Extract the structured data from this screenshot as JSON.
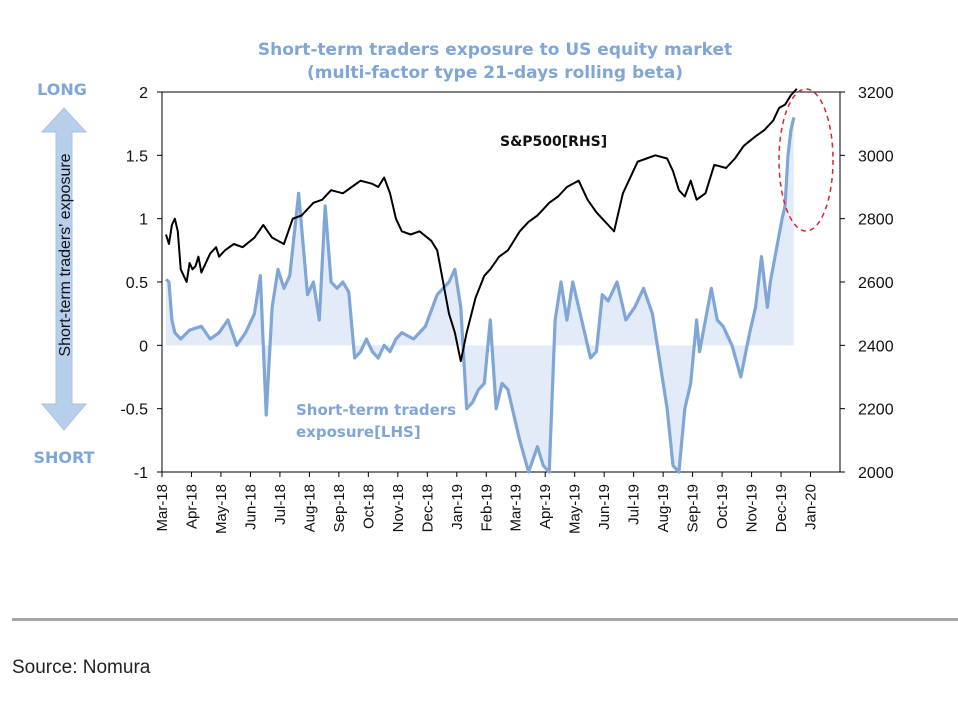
{
  "chart_data": {
    "type": "line",
    "title": "Short-term traders exposure to US equity market",
    "subtitle": "(multi-factor type 21-days rolling beta)",
    "ylabel": "Short-term traders' exposure",
    "direction_labels": {
      "top": "LONG",
      "bottom": "SHORT"
    },
    "x_ticks": [
      "Mar-18",
      "Apr-18",
      "May-18",
      "Jun-18",
      "Jul-18",
      "Aug-18",
      "Sep-18",
      "Oct-18",
      "Nov-18",
      "Dec-18",
      "Jan-19",
      "Feb-19",
      "Mar-19",
      "Apr-19",
      "May-19",
      "Jun-19",
      "Jul-19",
      "Aug-19",
      "Sep-19",
      "Oct-19",
      "Nov-19",
      "Dec-19",
      "Jan-20"
    ],
    "left_axis": {
      "ticks": [
        "2",
        "1.5",
        "1",
        "0.5",
        "0",
        "-0.5",
        "-1"
      ],
      "range": [
        -1,
        2
      ]
    },
    "right_axis": {
      "ticks": [
        "3200",
        "3000",
        "2800",
        "2600",
        "2400",
        "2200",
        "2000"
      ],
      "range": [
        2000,
        3200
      ]
    },
    "series": [
      {
        "name": "S&P500[RHS]",
        "axis": "right",
        "color": "#000000",
        "x": [
          0,
          0.1,
          0.2,
          0.3,
          0.4,
          0.5,
          0.6,
          0.7,
          0.8,
          0.9,
          1,
          1.1,
          1.2,
          1.3,
          1.4,
          1.5,
          1.6,
          1.7,
          1.8,
          2,
          2.3,
          2.6,
          3,
          3.3,
          3.6,
          4,
          4.3,
          4.6,
          5,
          5.3,
          5.6,
          6,
          6.3,
          6.6,
          7,
          7.2,
          7.4,
          7.6,
          7.8,
          8,
          8.3,
          8.6,
          9,
          9.2,
          9.4,
          9.6,
          9.8,
          10,
          10.2,
          10.5,
          10.8,
          11,
          11.3,
          11.6,
          12,
          12.3,
          12.6,
          13,
          13.3,
          13.6,
          14,
          14.3,
          14.6,
          15,
          15.2,
          15.5,
          15.8,
          16,
          16.3,
          16.6,
          17,
          17.2,
          17.4,
          17.6,
          17.8,
          18,
          18.3,
          18.6,
          19,
          19.3,
          19.6,
          20,
          20.3,
          20.6,
          20.8,
          21,
          21.2,
          21.4
        ],
        "values": [
          2750,
          2720,
          2780,
          2800,
          2760,
          2640,
          2620,
          2600,
          2660,
          2640,
          2650,
          2680,
          2630,
          2650,
          2670,
          2690,
          2700,
          2710,
          2680,
          2700,
          2720,
          2710,
          2740,
          2780,
          2740,
          2720,
          2800,
          2810,
          2850,
          2860,
          2890,
          2880,
          2900,
          2920,
          2910,
          2900,
          2930,
          2880,
          2800,
          2760,
          2750,
          2760,
          2730,
          2700,
          2600,
          2500,
          2440,
          2350,
          2440,
          2550,
          2620,
          2640,
          2680,
          2700,
          2760,
          2790,
          2810,
          2850,
          2870,
          2900,
          2920,
          2860,
          2820,
          2780,
          2760,
          2880,
          2940,
          2980,
          2990,
          3000,
          2990,
          2950,
          2890,
          2870,
          2920,
          2860,
          2880,
          2970,
          2960,
          2990,
          3030,
          3060,
          3080,
          3110,
          3150,
          3160,
          3190,
          3210
        ]
      },
      {
        "name": "Short-term traders exposure[LHS]",
        "axis": "left",
        "color": "#7fa6d6",
        "x": [
          0,
          0.1,
          0.2,
          0.3,
          0.5,
          0.8,
          1.2,
          1.5,
          1.8,
          2.1,
          2.4,
          2.7,
          3.0,
          3.2,
          3.4,
          3.6,
          3.8,
          4.0,
          4.2,
          4.5,
          4.8,
          5.0,
          5.2,
          5.4,
          5.6,
          5.8,
          6.0,
          6.2,
          6.4,
          6.6,
          6.8,
          7.0,
          7.2,
          7.4,
          7.6,
          7.8,
          8.0,
          8.4,
          8.8,
          9.2,
          9.6,
          9.8,
          10.0,
          10.2,
          10.4,
          10.6,
          10.8,
          11.0,
          11.2,
          11.4,
          11.6,
          12.0,
          12.3,
          12.6,
          12.8,
          13.0,
          13.2,
          13.4,
          13.6,
          13.8,
          14.0,
          14.2,
          14.4,
          14.6,
          14.8,
          15.0,
          15.3,
          15.6,
          15.9,
          16.2,
          16.5,
          16.8,
          17.0,
          17.2,
          17.4,
          17.6,
          17.8,
          18.0,
          18.1,
          18.3,
          18.5,
          18.7,
          18.9,
          19.2,
          19.5,
          19.8,
          20.0,
          20.2,
          20.4,
          20.5,
          20.7,
          20.9,
          21.0,
          21.1,
          21.2,
          21.3
        ],
        "values": [
          0.52,
          0.5,
          0.2,
          0.1,
          0.05,
          0.12,
          0.15,
          0.05,
          0.1,
          0.2,
          0.0,
          0.1,
          0.25,
          0.55,
          -0.55,
          0.3,
          0.6,
          0.45,
          0.55,
          1.2,
          0.4,
          0.5,
          0.2,
          1.1,
          0.5,
          0.45,
          0.5,
          0.42,
          -0.1,
          -0.05,
          0.05,
          -0.05,
          -0.1,
          0.0,
          -0.05,
          0.05,
          0.1,
          0.05,
          0.15,
          0.4,
          0.5,
          0.6,
          0.3,
          -0.5,
          -0.45,
          -0.35,
          -0.3,
          0.2,
          -0.5,
          -0.3,
          -0.35,
          -0.75,
          -1.0,
          -0.8,
          -0.95,
          -1.0,
          0.2,
          0.5,
          0.2,
          0.5,
          0.3,
          0.1,
          -0.1,
          -0.05,
          0.4,
          0.35,
          0.5,
          0.2,
          0.3,
          0.45,
          0.25,
          -0.2,
          -0.5,
          -0.95,
          -1.0,
          -0.5,
          -0.3,
          0.2,
          -0.05,
          0.2,
          0.45,
          0.2,
          0.15,
          0.0,
          -0.25,
          0.1,
          0.3,
          0.7,
          0.3,
          0.5,
          0.75,
          1.0,
          1.1,
          1.5,
          1.7,
          1.8
        ]
      }
    ],
    "annotation": "dashed red ellipse around Dec-19 highs"
  },
  "source": "Source: Nomura"
}
